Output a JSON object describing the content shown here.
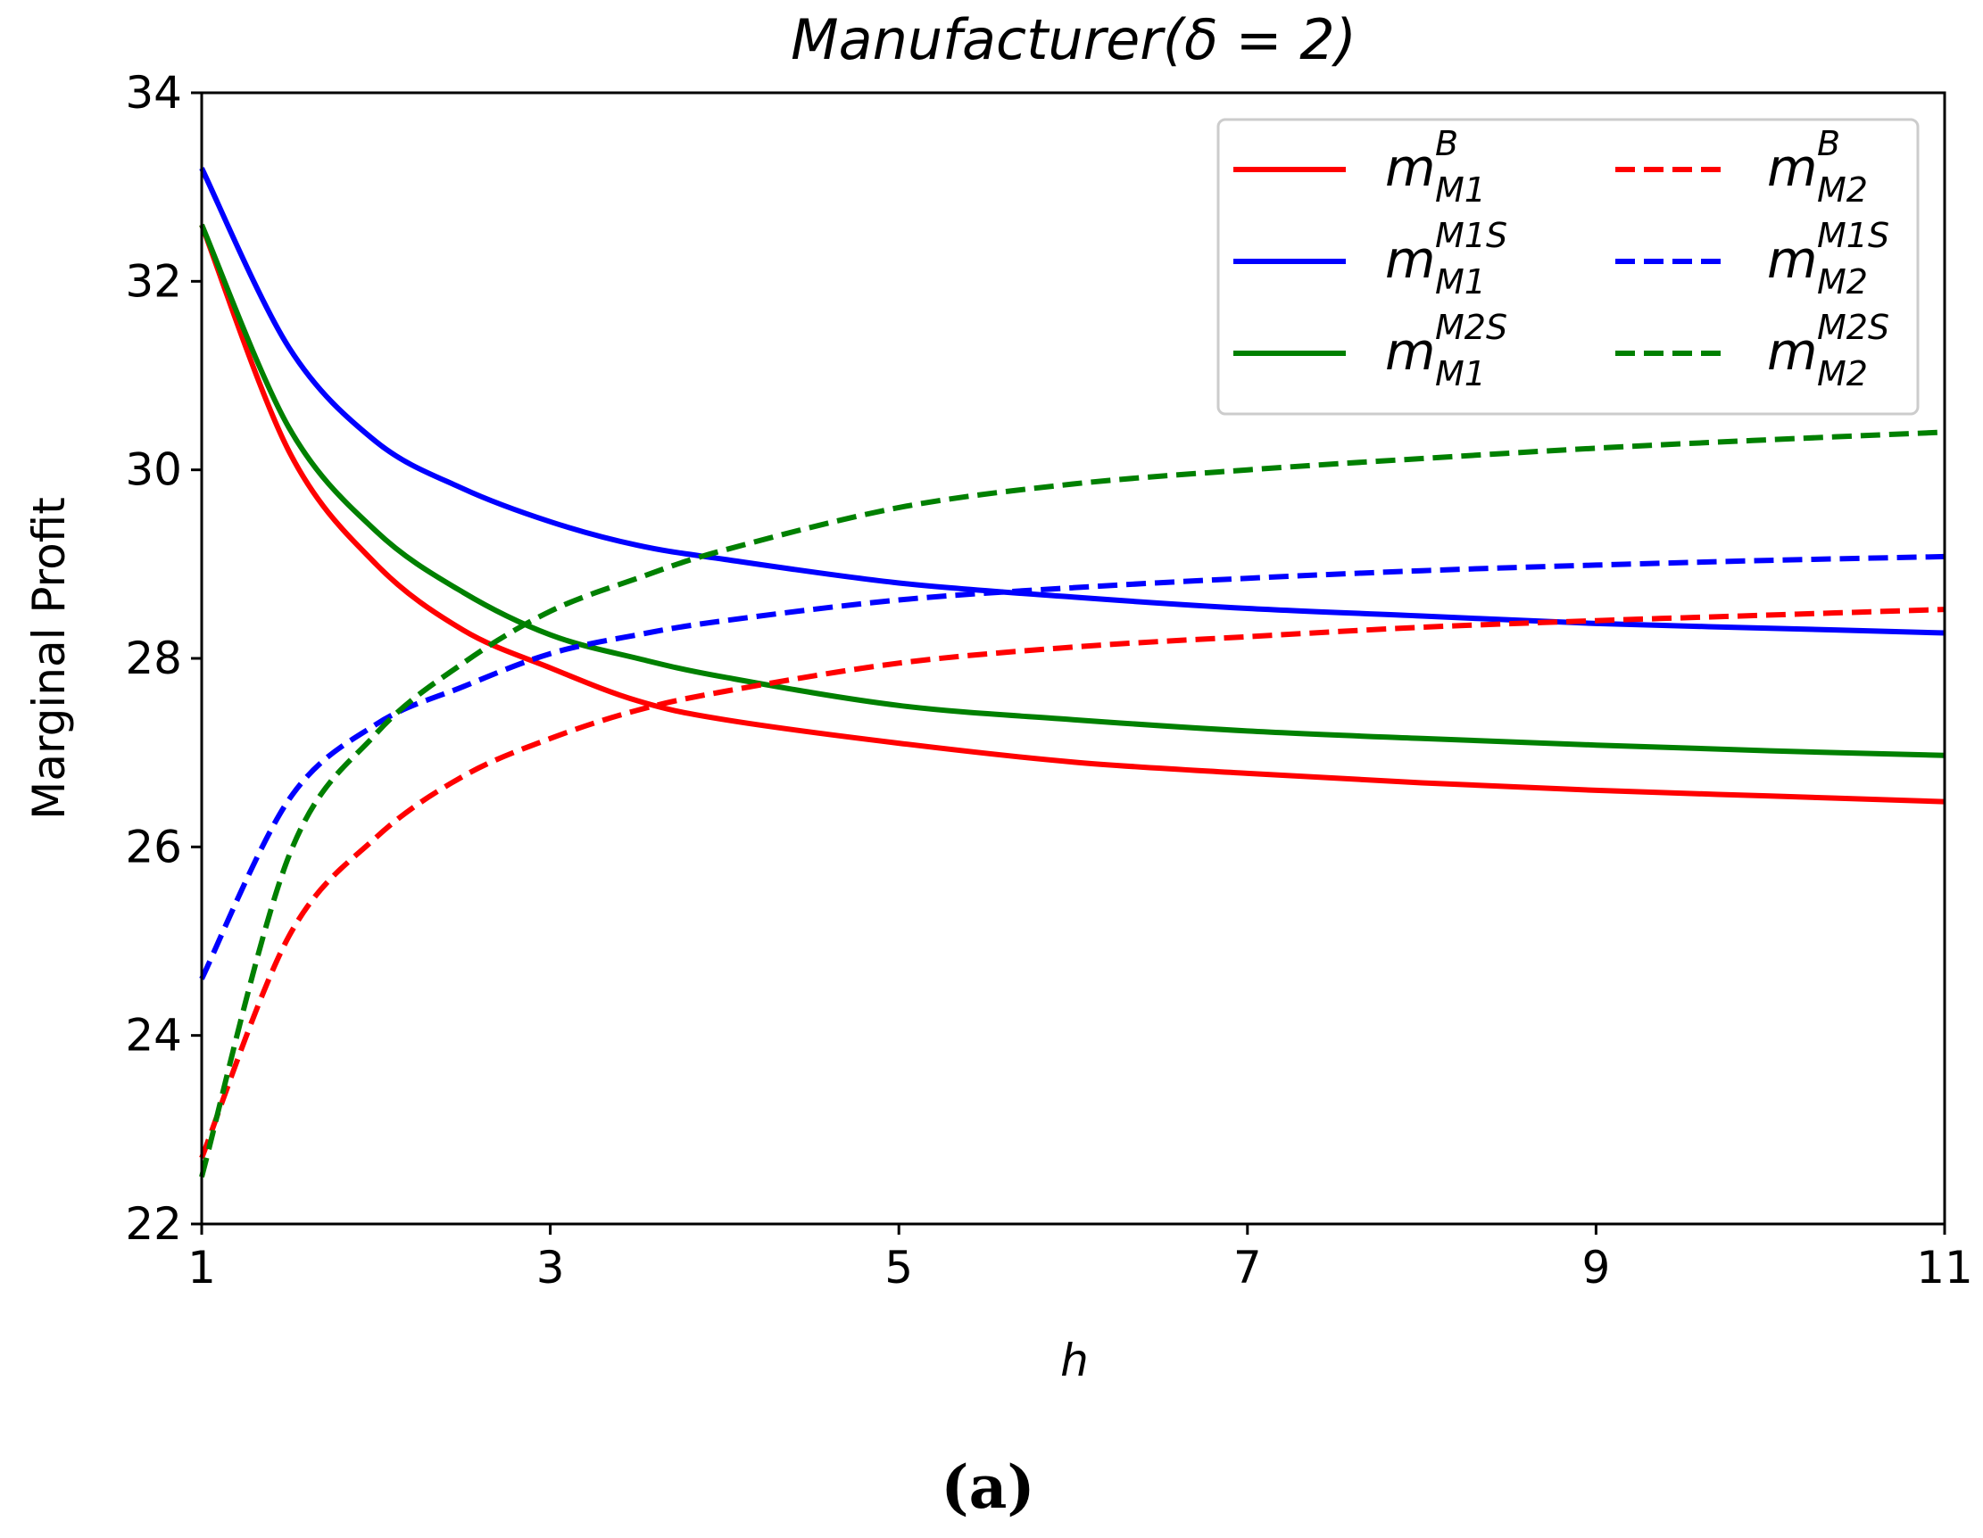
{
  "chart_data": {
    "type": "line",
    "title": "Manufacturer(δ = 2)",
    "xlabel": "h",
    "ylabel": "Marginal Profit",
    "xlim": [
      1,
      11
    ],
    "ylim": [
      22,
      34
    ],
    "xticks": [
      1,
      3,
      5,
      7,
      9,
      11
    ],
    "yticks": [
      22,
      24,
      26,
      28,
      30,
      32,
      34
    ],
    "grid": false,
    "legend_position": "top-right",
    "x": [
      1,
      1.5,
      2,
      2.5,
      3,
      3.5,
      4,
      5,
      6,
      7,
      8,
      9,
      10,
      11
    ],
    "series": [
      {
        "name": "m_M1^B",
        "base": "m",
        "sup": "B",
        "sub": "M1",
        "color": "#ff0000",
        "dash": "solid",
        "values": [
          32.6,
          30.2,
          29.0,
          28.3,
          27.9,
          27.55,
          27.35,
          27.1,
          26.9,
          26.78,
          26.68,
          26.6,
          26.54,
          26.48
        ]
      },
      {
        "name": "m_M1^M1S",
        "base": "m",
        "sup": "M1S",
        "sub": "M1",
        "color": "#0000ff",
        "dash": "solid",
        "values": [
          33.2,
          31.3,
          30.3,
          29.8,
          29.45,
          29.2,
          29.05,
          28.8,
          28.65,
          28.53,
          28.45,
          28.37,
          28.32,
          28.27
        ]
      },
      {
        "name": "m_M1^M2S",
        "base": "m",
        "sup": "M2S",
        "sub": "M1",
        "color": "#008000",
        "dash": "solid",
        "values": [
          32.6,
          30.45,
          29.35,
          28.7,
          28.25,
          28.0,
          27.8,
          27.5,
          27.35,
          27.23,
          27.15,
          27.08,
          27.02,
          26.97
        ]
      },
      {
        "name": "m_M2^B",
        "base": "m",
        "sup": "B",
        "sub": "M2",
        "color": "#ff0000",
        "dash": "dashed",
        "values": [
          22.7,
          25.05,
          26.1,
          26.75,
          27.15,
          27.45,
          27.65,
          27.95,
          28.12,
          28.23,
          28.33,
          28.4,
          28.46,
          28.52
        ]
      },
      {
        "name": "m_M2^M1S",
        "base": "m",
        "sup": "M1S",
        "sub": "M2",
        "color": "#0000ff",
        "dash": "dashed",
        "values": [
          24.6,
          26.5,
          27.3,
          27.7,
          28.05,
          28.25,
          28.4,
          28.62,
          28.75,
          28.85,
          28.93,
          28.99,
          29.04,
          29.08
        ]
      },
      {
        "name": "m_M2^M2S",
        "base": "m",
        "sup": "M2S",
        "sub": "M2",
        "color": "#008000",
        "dash": "dashed",
        "values": [
          22.5,
          25.9,
          27.2,
          27.95,
          28.5,
          28.85,
          29.15,
          29.6,
          29.85,
          30.0,
          30.12,
          30.23,
          30.32,
          30.4
        ]
      }
    ]
  },
  "caption": "(a)"
}
